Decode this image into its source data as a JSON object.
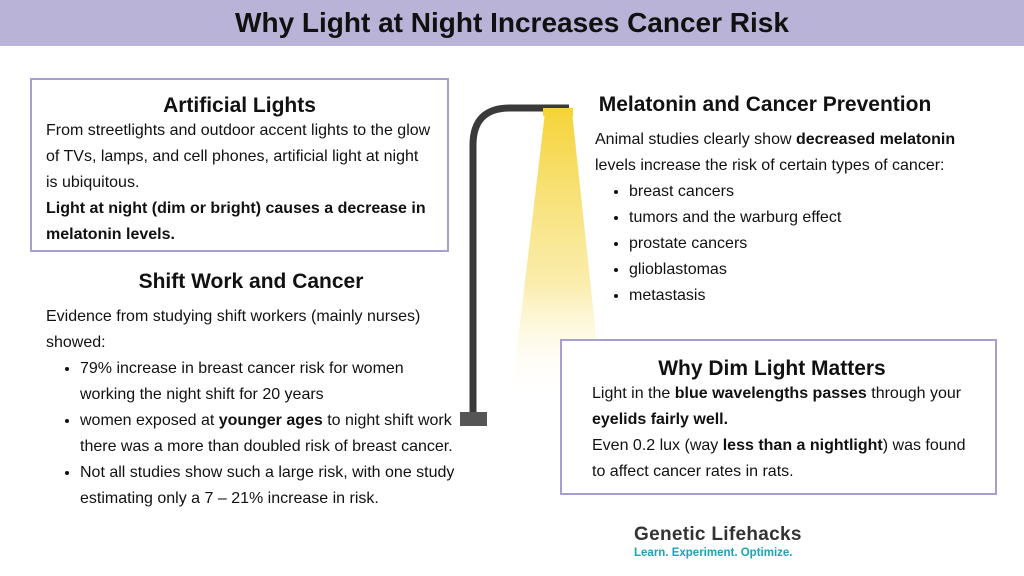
{
  "title": "Why Light at Night Increases Cancer Risk",
  "artificial_lights": {
    "heading": "Artificial Lights",
    "text": "From streetlights and outdoor accent lights to the glow of TVs, lamps, and cell phones, artificial light at night is ubiquitous.",
    "bold_text": "Light at night (dim or bright) causes a decrease in melatonin levels."
  },
  "shift_work": {
    "heading": "Shift Work and Cancer",
    "intro": "Evidence from studying shift workers (mainly nurses) showed:",
    "items": [
      {
        "text": "79% increase in breast cancer risk for women working the night shift for 20 years"
      },
      {
        "pre": "women exposed at ",
        "bold": "younger ages",
        "post": " to night shift work there was a more than doubled risk of breast cancer."
      },
      {
        "text": "Not all studies show such a large risk, with one study estimating only a 7 – 21% increase in risk."
      }
    ]
  },
  "melatonin": {
    "heading": "Melatonin and Cancer Prevention",
    "intro_pre": "Animal studies clearly show ",
    "intro_bold": "decreased melatonin",
    "intro_post": " levels increase the risk of certain types of cancer:",
    "items": [
      "breast cancers",
      "tumors and the warburg effect",
      "prostate cancers",
      "glioblastomas",
      "metastasis"
    ]
  },
  "dim_light": {
    "heading": "Why Dim Light Matters",
    "p1_pre": "Light in the ",
    "p1_bold1": "blue wavelengths passes",
    "p1_mid": " through your ",
    "p1_bold2": "eyelids fairly well.",
    "p2_pre": "Even 0.2 lux (way ",
    "p2_bold": "less than a nightlight",
    "p2_post": ") was found to affect cancer rates in rats."
  },
  "brand": {
    "name": "Genetic Lifehacks",
    "tagline": "Learn. Experiment. Optimize."
  },
  "colors": {
    "title_bar": "#b9b3d8",
    "box_border": "#a79fd0",
    "lamp_post": "#3a3a3a",
    "light": "#f5d43a",
    "tagline": "#1aa3b8"
  },
  "icons": [
    "street-lamp-icon"
  ]
}
